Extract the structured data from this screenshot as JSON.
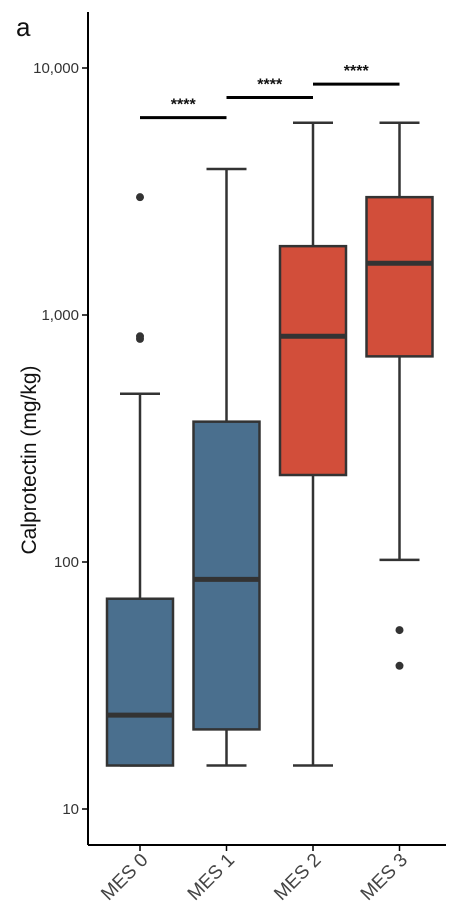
{
  "panel_label": "a",
  "colors": {
    "mes_low": "#4a6f8e",
    "mes_high": "#d24e3a",
    "axis": "#000000",
    "box_stroke": "#333333"
  },
  "chart_data": {
    "type": "box",
    "ylabel": "Calprotectin (mg/kg)",
    "xlabel": "",
    "yscale": "log",
    "ylim": [
      7,
      16000
    ],
    "yticks": [
      {
        "value": 10,
        "label": "10"
      },
      {
        "value": 100,
        "label": "100"
      },
      {
        "value": 1000,
        "label": "1,000"
      },
      {
        "value": 10000,
        "label": "10,000"
      }
    ],
    "categories": [
      "MES 0",
      "MES 1",
      "MES 2",
      "MES 3"
    ],
    "boxes": [
      {
        "category": "MES 0",
        "whisker_low": 15,
        "q1": 15,
        "median": 24,
        "q3": 71,
        "whisker_high": 480,
        "outliers": [
          800,
          820,
          3000
        ],
        "color": "#4a6f8e"
      },
      {
        "category": "MES 1",
        "whisker_low": 15,
        "q1": 21,
        "median": 85,
        "q3": 370,
        "whisker_high": 3900,
        "outliers": [],
        "color": "#4a6f8e"
      },
      {
        "category": "MES 2",
        "whisker_low": 15,
        "q1": 225,
        "median": 820,
        "q3": 1900,
        "whisker_high": 6000,
        "outliers": [],
        "color": "#d24e3a"
      },
      {
        "category": "MES 3",
        "whisker_low": 102,
        "q1": 680,
        "median": 1620,
        "q3": 3000,
        "whisker_high": 6000,
        "outliers": [
          38,
          53
        ],
        "color": "#d24e3a"
      }
    ],
    "significance": [
      {
        "from": "MES 0",
        "to": "MES 1",
        "label": "****",
        "y": 6300
      },
      {
        "from": "MES 1",
        "to": "MES 2",
        "label": "****",
        "y": 7600
      },
      {
        "from": "MES 2",
        "to": "MES 3",
        "label": "****",
        "y": 8600
      }
    ],
    "legend": "none",
    "grid": false
  }
}
